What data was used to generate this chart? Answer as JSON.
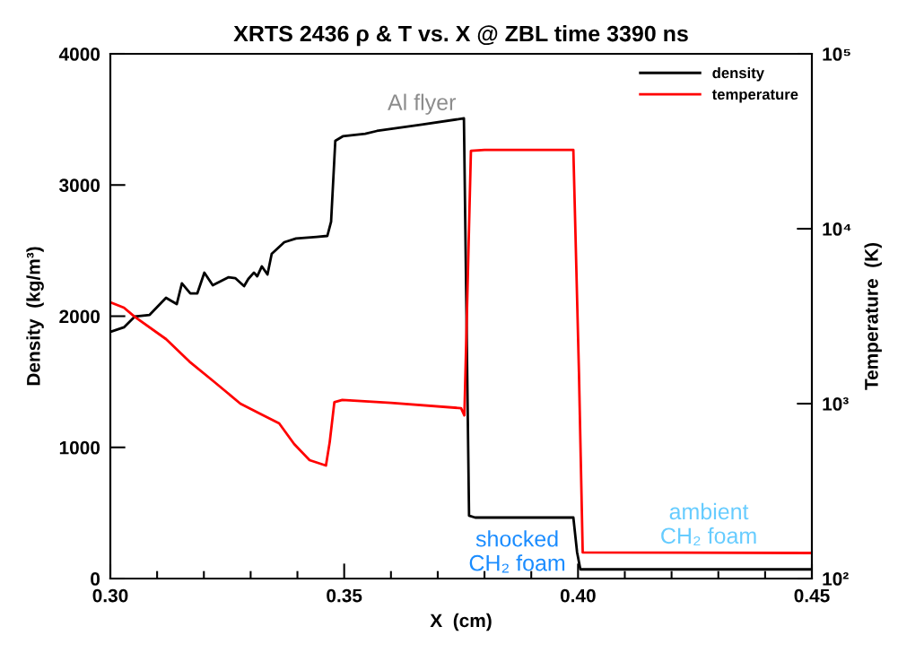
{
  "chart_data": {
    "type": "line",
    "title": "XRTS 2436 ρ & T vs. X @ ZBL time 3390 ns",
    "xlabel": "X  (cm)",
    "ylabel": "Density  (kg/m³)",
    "y2label": "Temperature  (K)",
    "xlim": [
      0.3,
      0.45
    ],
    "xticks": [
      {
        "value": 0.3,
        "label": "0.30"
      },
      {
        "value": 0.35,
        "label": "0.35"
      },
      {
        "value": 0.4,
        "label": "0.40"
      },
      {
        "value": 0.45,
        "label": "0.45"
      }
    ],
    "ylim": [
      0,
      4000
    ],
    "yticks": [
      0,
      1000,
      2000,
      3000,
      4000
    ],
    "y2lim": [
      100,
      100000
    ],
    "y2ticks": [
      {
        "value": 100,
        "label": "10²"
      },
      {
        "value": 1000,
        "label": "10³"
      },
      {
        "value": 10000,
        "label": "10⁴"
      },
      {
        "value": 100000,
        "label": "10⁵"
      }
    ],
    "log": "y2",
    "legend": "top right",
    "grid": false,
    "series": [
      {
        "name": "density",
        "color": "#000000",
        "x": [
          0.3,
          0.3029,
          0.3052,
          0.3084,
          0.3119,
          0.3142,
          0.3153,
          0.3171,
          0.3186,
          0.3201,
          0.3219,
          0.3253,
          0.3267,
          0.3286,
          0.3295,
          0.3307,
          0.3314,
          0.3324,
          0.3336,
          0.3345,
          0.3372,
          0.3397,
          0.3441,
          0.3464,
          0.3472,
          0.3481,
          0.3497,
          0.3545,
          0.357,
          0.3666,
          0.3756,
          0.3767,
          0.378,
          0.399,
          0.3998,
          0.4005,
          0.45
        ],
        "values": [
          1880,
          1915,
          1997,
          2010,
          2140,
          2092,
          2250,
          2174,
          2174,
          2332,
          2236,
          2297,
          2290,
          2229,
          2284,
          2332,
          2304,
          2380,
          2318,
          2475,
          2564,
          2592,
          2605,
          2612,
          2721,
          3337,
          3371,
          3391,
          3412,
          3460,
          3508,
          479,
          465,
          465,
          200,
          70,
          70
        ]
      },
      {
        "name": "temperature",
        "color": "#ff0000",
        "axis": "y2",
        "x": [
          0.3,
          0.3029,
          0.3052,
          0.3119,
          0.3169,
          0.3221,
          0.3278,
          0.3323,
          0.3361,
          0.3393,
          0.3426,
          0.3461,
          0.3469,
          0.3479,
          0.3496,
          0.36,
          0.375,
          0.3757,
          0.3771,
          0.38,
          0.399,
          0.4002,
          0.401,
          0.45
        ],
        "values": [
          3800,
          3540,
          3140,
          2340,
          1740,
          1340,
          1000,
          867,
          771,
          588,
          475,
          443,
          601,
          1020,
          1050,
          1010,
          942,
          857,
          27900,
          28200,
          28200,
          1500,
          141,
          140
        ]
      }
    ],
    "annotations": [
      {
        "text": "Al flyer",
        "x": 0.3666,
        "y": 3460
      },
      "shocked\nCH₂ foam",
      "ambient\nCH₂ foam"
    ]
  }
}
